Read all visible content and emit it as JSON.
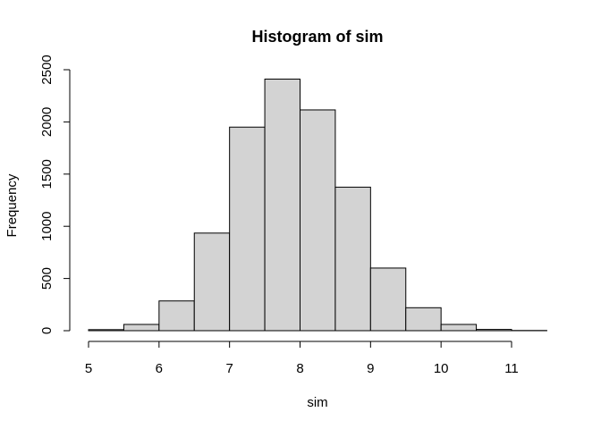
{
  "chart_data": {
    "type": "bar",
    "title": "Histogram of sim",
    "xlabel": "sim",
    "ylabel": "Frequency",
    "bins": [
      {
        "x0": 5.0,
        "x1": 5.5,
        "count": 10
      },
      {
        "x0": 5.5,
        "x1": 6.0,
        "count": 60
      },
      {
        "x0": 6.0,
        "x1": 6.5,
        "count": 285
      },
      {
        "x0": 6.5,
        "x1": 7.0,
        "count": 935
      },
      {
        "x0": 7.0,
        "x1": 7.5,
        "count": 1950
      },
      {
        "x0": 7.5,
        "x1": 8.0,
        "count": 2410
      },
      {
        "x0": 8.0,
        "x1": 8.5,
        "count": 2115
      },
      {
        "x0": 8.5,
        "x1": 9.0,
        "count": 1375
      },
      {
        "x0": 9.0,
        "x1": 9.5,
        "count": 600
      },
      {
        "x0": 9.5,
        "x1": 10.0,
        "count": 220
      },
      {
        "x0": 10.0,
        "x1": 10.5,
        "count": 60
      },
      {
        "x0": 10.5,
        "x1": 11.0,
        "count": 12
      },
      {
        "x0": 11.0,
        "x1": 11.5,
        "count": 2
      }
    ],
    "xlim": [
      5,
      11.5
    ],
    "ylim": [
      0,
      2500
    ],
    "xticks": [
      "5",
      "6",
      "7",
      "8",
      "9",
      "10",
      "11"
    ],
    "yticks": [
      "0",
      "500",
      "1000",
      "1500",
      "2000",
      "2500"
    ],
    "bar_fill": "#d3d3d3",
    "bar_stroke": "#000000",
    "grid": false,
    "legend": "none"
  }
}
